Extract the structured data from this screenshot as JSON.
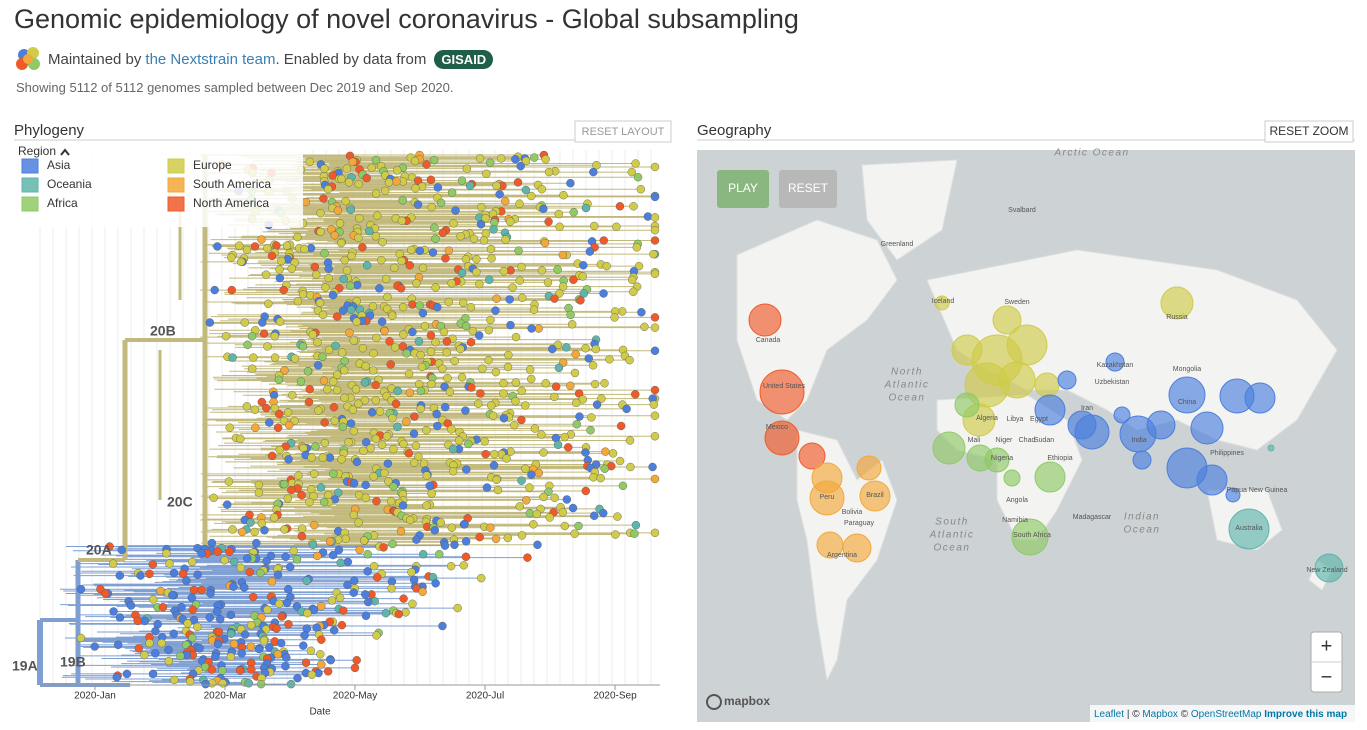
{
  "header": {
    "title": "Genomic epidemiology of novel coronavirus - Global subsampling",
    "maintained_prefix": "Maintained by",
    "team_link": "the Nextstrain team",
    "enabled_text": ". Enabled by data from",
    "gisaid": "GISAID",
    "summary": "Showing 5112 of 5112 genomes sampled between Dec 2019 and Sep 2020."
  },
  "phylogeny": {
    "title": "Phylogeny",
    "reset_button": "RESET LAYOUT",
    "legend_title": "Region",
    "legend": [
      {
        "name": "Asia",
        "color": "#4c7fdd"
      },
      {
        "name": "Oceania",
        "color": "#5fb5aa"
      },
      {
        "name": "Africa",
        "color": "#8fca65"
      },
      {
        "name": "Europe",
        "color": "#d0cb48"
      },
      {
        "name": "South America",
        "color": "#f2a83a"
      },
      {
        "name": "North America",
        "color": "#ef5a2a"
      }
    ],
    "clade_labels": [
      "20B",
      "20C",
      "20A",
      "19A",
      "19B"
    ],
    "x_ticks": [
      "2020-Jan",
      "2020-Mar",
      "2020-May",
      "2020-Jul",
      "2020-Sep"
    ],
    "x_label": "Date"
  },
  "geography": {
    "title": "Geography",
    "reset_button": "RESET ZOOM",
    "play_button": "PLAY",
    "reset_anim_button": "RESET",
    "ocean_labels": [
      [
        "Arctic Ocean"
      ],
      [
        "North",
        "Atlantic",
        "Ocean"
      ],
      [
        "South",
        "Atlantic",
        "Ocean"
      ],
      [
        "Indian",
        "Ocean"
      ]
    ],
    "place_labels": [
      "Svalbard",
      "Greenland",
      "Iceland",
      "Sweden",
      "Canada",
      "United States",
      "Mexico",
      "Russia",
      "Kazakhstan",
      "Mongolia",
      "Uzbekistan",
      "Iran",
      "China",
      "India",
      "Algeria",
      "Libya",
      "Egypt",
      "Mali",
      "Niger",
      "Chad",
      "Sudan",
      "Nigeria",
      "Ethiopia",
      "Angola",
      "Namibia",
      "South Africa",
      "Madagascar",
      "Brazil",
      "Peru",
      "Bolivia",
      "Paraguay",
      "Argentina",
      "Philippines",
      "Papua New Guinea",
      "Australia",
      "New Zealand"
    ],
    "zoom_in": "+",
    "zoom_out": "−",
    "mapbox_logo": "mapbox",
    "attribution": [
      "Leaflet",
      "| ©",
      "Mapbox",
      "©",
      "OpenStreetMap",
      "Improve this map"
    ]
  }
}
